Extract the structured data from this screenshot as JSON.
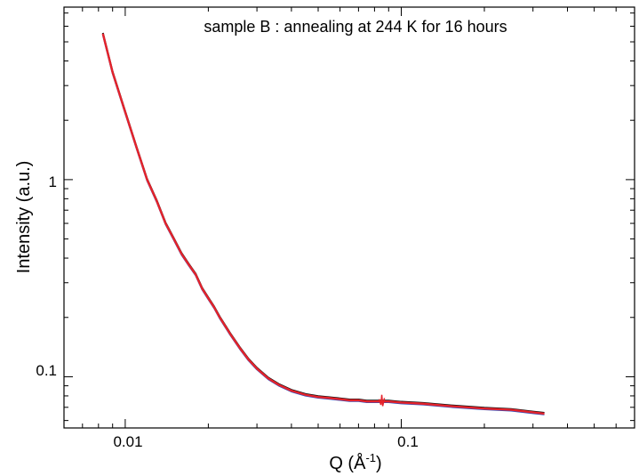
{
  "chart_data": {
    "type": "line",
    "title": "sample B : annealing at 244 K for 16 hours",
    "xlabel_main": "Q (Å",
    "xlabel_sup": "-1",
    "xlabel_close": ")",
    "ylabel": "Intensity (a.u.)",
    "xscale": "log",
    "yscale": "log",
    "xlim": [
      0.006,
      0.7
    ],
    "ylim": [
      0.055,
      7.5
    ],
    "xticks": [
      {
        "value": 0.01,
        "label": "0.01"
      },
      {
        "value": 0.1,
        "label": "0.1"
      }
    ],
    "yticks": [
      {
        "value": 0.1,
        "label": "0.1"
      },
      {
        "value": 1,
        "label": "1"
      }
    ],
    "grid": false,
    "legend": "none",
    "series": [
      {
        "color": "#2f4fbf",
        "offset": -0.004,
        "x": [
          0.0083,
          0.009,
          0.01,
          0.011,
          0.012,
          0.013,
          0.014,
          0.015,
          0.016,
          0.017,
          0.018,
          0.019,
          0.02,
          0.021,
          0.022,
          0.024,
          0.026,
          0.028,
          0.03,
          0.033,
          0.036,
          0.04,
          0.045,
          0.05,
          0.055,
          0.06,
          0.065,
          0.07,
          0.075,
          0.08,
          0.085,
          0.09,
          0.1,
          0.12,
          0.15,
          0.2,
          0.25,
          0.3,
          0.33
        ],
        "y": [
          5.5,
          3.5,
          2.2,
          1.45,
          1.0,
          0.78,
          0.6,
          0.5,
          0.42,
          0.37,
          0.33,
          0.28,
          0.25,
          0.225,
          0.2,
          0.165,
          0.14,
          0.122,
          0.11,
          0.098,
          0.091,
          0.085,
          0.081,
          0.079,
          0.078,
          0.077,
          0.076,
          0.076,
          0.075,
          0.075,
          0.075,
          0.075,
          0.074,
          0.073,
          0.071,
          0.069,
          0.068,
          0.066,
          0.065
        ]
      },
      {
        "color": "#111111",
        "offset": 0.004,
        "x": [
          0.0083,
          0.009,
          0.01,
          0.011,
          0.012,
          0.013,
          0.014,
          0.015,
          0.016,
          0.017,
          0.018,
          0.019,
          0.02,
          0.021,
          0.022,
          0.024,
          0.026,
          0.028,
          0.03,
          0.033,
          0.036,
          0.04,
          0.045,
          0.05,
          0.055,
          0.06,
          0.065,
          0.07,
          0.075,
          0.08,
          0.085,
          0.09,
          0.1,
          0.12,
          0.15,
          0.2,
          0.25,
          0.3,
          0.33
        ],
        "y": [
          5.5,
          3.5,
          2.2,
          1.45,
          1.0,
          0.78,
          0.6,
          0.5,
          0.42,
          0.37,
          0.33,
          0.28,
          0.25,
          0.225,
          0.2,
          0.165,
          0.14,
          0.122,
          0.11,
          0.098,
          0.091,
          0.085,
          0.081,
          0.079,
          0.078,
          0.077,
          0.076,
          0.076,
          0.075,
          0.075,
          0.075,
          0.075,
          0.074,
          0.073,
          0.071,
          0.069,
          0.068,
          0.066,
          0.065
        ]
      },
      {
        "color": "#e5232b",
        "offset": 0.0,
        "x": [
          0.0083,
          0.009,
          0.01,
          0.011,
          0.012,
          0.013,
          0.014,
          0.015,
          0.016,
          0.017,
          0.018,
          0.019,
          0.02,
          0.021,
          0.022,
          0.024,
          0.026,
          0.028,
          0.03,
          0.033,
          0.036,
          0.04,
          0.045,
          0.05,
          0.055,
          0.06,
          0.065,
          0.07,
          0.075,
          0.08,
          0.085,
          0.09,
          0.1,
          0.12,
          0.15,
          0.2,
          0.25,
          0.3,
          0.33
        ],
        "y": [
          5.5,
          3.5,
          2.2,
          1.45,
          1.0,
          0.78,
          0.6,
          0.5,
          0.42,
          0.37,
          0.33,
          0.28,
          0.25,
          0.225,
          0.2,
          0.165,
          0.14,
          0.122,
          0.11,
          0.098,
          0.091,
          0.085,
          0.081,
          0.079,
          0.078,
          0.077,
          0.076,
          0.076,
          0.075,
          0.075,
          0.075,
          0.075,
          0.074,
          0.073,
          0.071,
          0.069,
          0.068,
          0.066,
          0.065
        ]
      }
    ]
  }
}
